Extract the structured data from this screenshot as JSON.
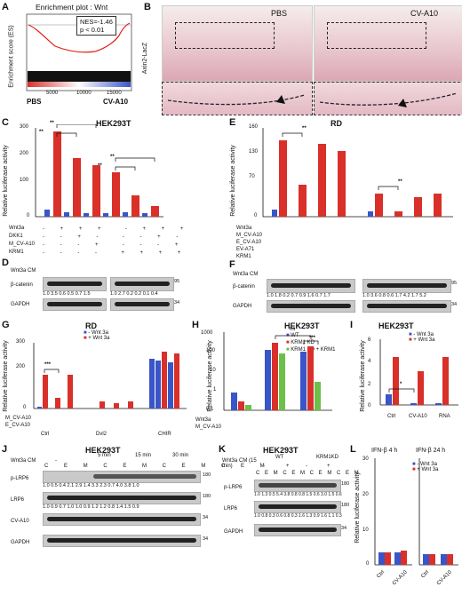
{
  "panels": {
    "A": {
      "label": "A",
      "title": "Enrichment plot : Wnt",
      "ylabel": "Enrichment score (ES)",
      "nes": "NES=-1.46",
      "pval": "p < 0.01",
      "xticks": [
        "5000",
        "10000",
        "15000"
      ],
      "yticks": [
        "0.0",
        "-0.1",
        "-0.2",
        "-0.3",
        "-0.4",
        "-0.5"
      ],
      "left_group": "PBS",
      "right_group": "CV-A10"
    },
    "B": {
      "label": "B",
      "ylabel": "Axin2-LacZ",
      "left": "PBS",
      "right": "CV-A10"
    },
    "C": {
      "label": "C",
      "title": "HEK293T",
      "ylabel": "Relative luciferase activity",
      "yticks": [
        "300",
        "250",
        "200",
        "150",
        "100",
        "50",
        "5",
        "0"
      ],
      "rows": [
        "Wnt3a",
        "DKK1",
        "M_CV-A10",
        "KRM1"
      ],
      "signs": [
        [
          "-",
          "+",
          "+",
          "+",
          "-",
          "+",
          "+",
          "+"
        ],
        [
          "-",
          "-",
          "+",
          "-",
          "-",
          "-",
          "+",
          "-"
        ],
        [
          "-",
          "-",
          "-",
          "+",
          "-",
          "-",
          "-",
          "+"
        ],
        [
          "-",
          "-",
          "-",
          "-",
          "+",
          "+",
          "+",
          "+"
        ]
      ],
      "sig": [
        "**",
        "**",
        "**",
        "**"
      ]
    },
    "D": {
      "label": "D",
      "cm": "Wnt3a CM",
      "cols1": [
        "Ctrl",
        "CV-A10",
        "DKK1"
      ],
      "cols2": [
        "Ctrl",
        "CV-A10",
        "DKK1"
      ],
      "rows": [
        "β-catenin",
        "GAPDH"
      ],
      "vals1": "1.0  3.5  0.6  0.5  0.7  1.5",
      "vals2": "1.0  2.7  0.2  0.2  0.1  0.4",
      "mw": [
        "95",
        "34"
      ]
    },
    "E": {
      "label": "E",
      "title": "RD",
      "ylabel": "Relative luciferase activity",
      "yticks": [
        "160",
        "130",
        "100",
        "70",
        "40",
        "10",
        "5",
        "0"
      ],
      "rows": [
        "Wnt3a",
        "M_CV-A10",
        "E_CV-A10",
        "EV-A71",
        "KRM1"
      ],
      "sig": [
        "**",
        "**"
      ]
    },
    "F": {
      "label": "F",
      "cm": "Wnt3a CM",
      "cols1": [
        "Ctrl",
        "M_CV-A10",
        "E_CV-A10",
        "EV-A71"
      ],
      "cols2": [
        "Ctrl",
        "M_CV-A10",
        "E_CV-A10",
        "EV-A71"
      ],
      "rows": [
        "β-catenin",
        "GAPDH"
      ],
      "vals1": "1.0 1.8 0.2 0.7 0.9 1.6 0.7 1.7",
      "vals2": "1.0 3.6 0.8 0.6 1.7 4.2 1.7 5.2",
      "mw": [
        "95",
        "34"
      ]
    },
    "G": {
      "label": "G",
      "title": "RD",
      "ylabel": "Relative luciferase activity",
      "yticks": [
        "300",
        "250",
        "200",
        "150",
        "100",
        "50",
        "0"
      ],
      "legend": [
        "- Wnt 3a",
        "+ Wnt 3a"
      ],
      "rows": [
        "M_CV-A10",
        "E_CV-A10"
      ],
      "groups": [
        "Ctrl",
        "Dvl2",
        "CHIR"
      ],
      "sig": "***"
    },
    "H": {
      "label": "H",
      "title": "HEK293T",
      "ylabel": "Relative luciferase activity",
      "yticks": [
        "1000",
        "100",
        "10",
        "1",
        "0.1"
      ],
      "legend": [
        "WT",
        "KRM1 KD",
        "KRM1 KD + KRM1"
      ],
      "rows": [
        "Wnt3a",
        "M_CV-A10"
      ],
      "sig": [
        "ns",
        "***"
      ]
    },
    "I": {
      "label": "I",
      "title": "HEK293T",
      "ylabel": "Relative luciferase activity",
      "yticks": [
        "6",
        "4",
        "2",
        "0"
      ],
      "legend": [
        "- Wnt 3a",
        "+ Wnt 3a"
      ],
      "groups": [
        "Ctrl",
        "CV-A10",
        "RNA"
      ],
      "sig": "*"
    },
    "J": {
      "label": "J",
      "title": "HEK293T",
      "cm": "Wnt3a CM",
      "times": [
        "-",
        "5 min",
        "15 min",
        "30 min"
      ],
      "lanes": "C E M C E M C E M C E M",
      "rows": [
        "p-LRP6",
        "LRP6",
        "CV-A10",
        "GAPDH"
      ],
      "v1": "1.0  0.5 0.4  2.1 2.9 1.4  3.3 2.3 0.7  4.0 3.8 1.0",
      "v2": "1.0  0.9 0.7  1.0 1.0 0.9  1.2 1.2 0.8  1.4 1.5 0.9",
      "mw": [
        "180",
        "180",
        "34",
        "34"
      ]
    },
    "K": {
      "label": "K",
      "title": "HEK293T",
      "cm": "Wnt3a CM (15 min)",
      "wt": "WT",
      "krm": "KRM1KD",
      "signs": [
        "-",
        "+",
        "-",
        "+"
      ],
      "lanes": "C E M C E M C E M C E M",
      "rows": [
        "p-LRP6",
        "LRP6",
        "GAPDH"
      ],
      "v1": "1.0 1.3 0.5  5.4 3.8 0.8  0.8 1.5 0.6  3.0 1.5 0.6",
      "v2": "1.0 0.8 0.3  0.6 0.8 0.3  1.6 1.3 0.9  1.6 1.1 0.3",
      "mw": [
        "180",
        "180",
        "34"
      ]
    },
    "L": {
      "label": "L",
      "title1": "IFN-β  4 h",
      "title2": "IFN-β  24 h",
      "ylabel": "Relative luciferase activity",
      "yticks": [
        "30",
        "20",
        "10",
        "0"
      ],
      "legend": [
        "- Wnt 3a",
        "+ Wnt 3a"
      ],
      "groups": [
        "Ctrl",
        "CV-A10",
        "Ctrl",
        "CV-A10"
      ]
    }
  },
  "colors": {
    "blue": "#3a55c8",
    "red": "#d9302a",
    "green": "#6cc04a",
    "redline": "#e0201a"
  }
}
